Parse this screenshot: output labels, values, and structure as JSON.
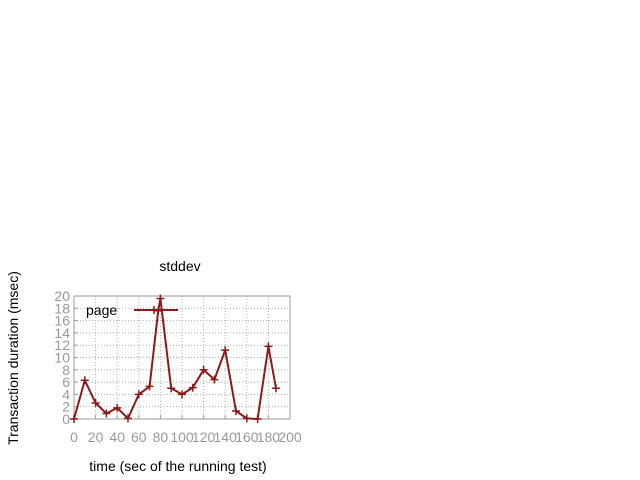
{
  "chart_data": {
    "type": "line",
    "title": "stddev",
    "xlabel": "time (sec of the running test)",
    "ylabel": "Transaction duration (msec)",
    "xlim": [
      0,
      200
    ],
    "ylim": [
      0,
      20
    ],
    "xticks": [
      "0",
      "20",
      "40",
      "60",
      "80",
      "100",
      "120",
      "140",
      "160",
      "180",
      "200"
    ],
    "yticks": [
      "0",
      "2",
      "4",
      "6",
      "8",
      "10",
      "12",
      "14",
      "16",
      "18",
      "20"
    ],
    "grid": true,
    "legend_position": "top-left",
    "series": [
      {
        "name": "page",
        "color": "#8b1a1a",
        "x": [
          0,
          10,
          20,
          30,
          40,
          50,
          60,
          70,
          78,
          80,
          90,
          100,
          110,
          120,
          130,
          140,
          150,
          160,
          170,
          180,
          187
        ],
        "y": [
          0,
          6.3,
          2.6,
          0.9,
          1.8,
          0.1,
          4.0,
          5.3,
          17.6,
          19.6,
          5.0,
          4.0,
          5.1,
          8.0,
          6.4,
          11.2,
          1.3,
          0.1,
          0,
          11.8,
          5.0
        ]
      }
    ]
  }
}
